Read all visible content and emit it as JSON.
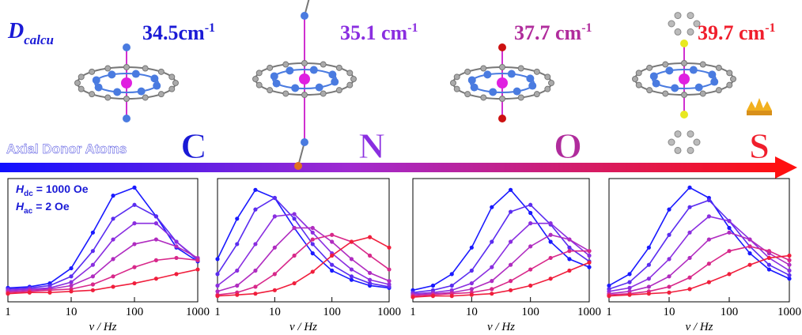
{
  "header": {
    "symbol": "D",
    "sub": "calcu"
  },
  "arrow_label": "Axial Donor Atoms",
  "molecules": [
    {
      "d_value": "34.5cm",
      "exponent": "-1",
      "atom": "C",
      "color": "#1a1ad6"
    },
    {
      "d_value": "35.1 cm",
      "exponent": "-1",
      "atom": "N",
      "color": "#8a2ee0"
    },
    {
      "d_value": "37.7 cm",
      "exponent": "-1",
      "atom": "O",
      "color": "#b02c9c"
    },
    {
      "d_value": "39.7 cm",
      "exponent": "-1",
      "atom": "S",
      "color": "#f01e2c"
    }
  ],
  "chart_data": [
    {
      "type": "line",
      "xlabel": "ν / Hz",
      "log_x": true,
      "xlim": [
        1,
        1000
      ],
      "xticks": [
        1,
        10,
        100,
        1000
      ],
      "ylim": [
        0,
        1
      ],
      "annotations": [
        {
          "symbol": "H",
          "sub": "dc",
          "text": "= 1000 Oe"
        },
        {
          "symbol": "H",
          "sub": "ac",
          "text": "= 2 Oe"
        }
      ],
      "x": [
        1,
        2.2,
        4.6,
        10,
        22,
        46,
        100,
        220,
        460,
        1000
      ],
      "series": [
        {
          "color": "#1a1aff",
          "values": [
            0.1,
            0.11,
            0.14,
            0.27,
            0.58,
            0.9,
            0.97,
            0.72,
            0.45,
            0.33
          ]
        },
        {
          "color": "#5a2df0",
          "values": [
            0.09,
            0.1,
            0.12,
            0.2,
            0.42,
            0.7,
            0.82,
            0.72,
            0.5,
            0.34
          ]
        },
        {
          "color": "#8a2ee0",
          "values": [
            0.08,
            0.09,
            0.1,
            0.15,
            0.3,
            0.52,
            0.66,
            0.66,
            0.5,
            0.35
          ]
        },
        {
          "color": "#b02cc0",
          "values": [
            0.07,
            0.08,
            0.09,
            0.12,
            0.2,
            0.35,
            0.48,
            0.52,
            0.46,
            0.36
          ]
        },
        {
          "color": "#d8288a",
          "values": [
            0.06,
            0.07,
            0.08,
            0.09,
            0.13,
            0.2,
            0.28,
            0.34,
            0.36,
            0.34
          ]
        },
        {
          "color": "#f01e3c",
          "values": [
            0.05,
            0.06,
            0.06,
            0.07,
            0.08,
            0.11,
            0.14,
            0.18,
            0.22,
            0.26
          ]
        }
      ]
    },
    {
      "type": "line",
      "xlabel": "ν / Hz",
      "log_x": true,
      "xlim": [
        1,
        1000
      ],
      "xticks": [
        1,
        10,
        100,
        1000
      ],
      "ylim": [
        0,
        1
      ],
      "x": [
        1,
        2.2,
        4.6,
        10,
        22,
        46,
        100,
        220,
        460,
        1000
      ],
      "series": [
        {
          "color": "#1a1aff",
          "values": [
            0.35,
            0.7,
            0.95,
            0.88,
            0.62,
            0.4,
            0.25,
            0.17,
            0.12,
            0.1
          ]
        },
        {
          "color": "#5a2df0",
          "values": [
            0.22,
            0.48,
            0.78,
            0.88,
            0.7,
            0.48,
            0.3,
            0.2,
            0.14,
            0.11
          ]
        },
        {
          "color": "#8a2ee0",
          "values": [
            0.12,
            0.25,
            0.48,
            0.72,
            0.74,
            0.58,
            0.4,
            0.26,
            0.17,
            0.13
          ]
        },
        {
          "color": "#b02cc0",
          "values": [
            0.07,
            0.12,
            0.25,
            0.45,
            0.62,
            0.62,
            0.5,
            0.35,
            0.23,
            0.16
          ]
        },
        {
          "color": "#d8288a",
          "values": [
            0.04,
            0.06,
            0.11,
            0.22,
            0.38,
            0.52,
            0.56,
            0.5,
            0.38,
            0.26
          ]
        },
        {
          "color": "#f01e3c",
          "values": [
            0.03,
            0.04,
            0.05,
            0.08,
            0.14,
            0.24,
            0.38,
            0.5,
            0.54,
            0.45
          ]
        }
      ]
    },
    {
      "type": "line",
      "xlabel": "ν / Hz",
      "log_x": true,
      "xlim": [
        1,
        1000
      ],
      "xticks": [
        1,
        10,
        100,
        1000
      ],
      "ylim": [
        0,
        1
      ],
      "x": [
        1,
        2.2,
        4.6,
        10,
        22,
        46,
        100,
        220,
        460,
        1000
      ],
      "series": [
        {
          "color": "#1a1aff",
          "values": [
            0.08,
            0.12,
            0.22,
            0.45,
            0.8,
            0.95,
            0.75,
            0.5,
            0.35,
            0.28
          ]
        },
        {
          "color": "#5a2df0",
          "values": [
            0.06,
            0.08,
            0.12,
            0.25,
            0.5,
            0.76,
            0.82,
            0.65,
            0.45,
            0.33
          ]
        },
        {
          "color": "#8a2ee0",
          "values": [
            0.05,
            0.06,
            0.08,
            0.14,
            0.28,
            0.5,
            0.66,
            0.66,
            0.52,
            0.38
          ]
        },
        {
          "color": "#b02cc0",
          "values": [
            0.04,
            0.05,
            0.06,
            0.09,
            0.16,
            0.3,
            0.46,
            0.56,
            0.52,
            0.42
          ]
        },
        {
          "color": "#d8288a",
          "values": [
            0.03,
            0.04,
            0.05,
            0.06,
            0.09,
            0.16,
            0.26,
            0.36,
            0.42,
            0.42
          ]
        },
        {
          "color": "#f01e3c",
          "values": [
            0.02,
            0.03,
            0.03,
            0.04,
            0.05,
            0.08,
            0.12,
            0.18,
            0.25,
            0.32
          ]
        }
      ]
    },
    {
      "type": "line",
      "xlabel": "ν / Hz",
      "log_x": true,
      "xlim": [
        1,
        1000
      ],
      "xticks": [
        1,
        10,
        100,
        1000
      ],
      "ylim": [
        0,
        1
      ],
      "x": [
        1,
        2.2,
        4.6,
        10,
        22,
        46,
        100,
        220,
        460,
        1000
      ],
      "series": [
        {
          "color": "#1a1aff",
          "values": [
            0.12,
            0.22,
            0.45,
            0.78,
            0.97,
            0.88,
            0.62,
            0.4,
            0.26,
            0.18
          ]
        },
        {
          "color": "#5a2df0",
          "values": [
            0.09,
            0.15,
            0.3,
            0.56,
            0.8,
            0.86,
            0.68,
            0.46,
            0.3,
            0.21
          ]
        },
        {
          "color": "#8a2ee0",
          "values": [
            0.07,
            0.1,
            0.18,
            0.35,
            0.58,
            0.72,
            0.68,
            0.52,
            0.36,
            0.25
          ]
        },
        {
          "color": "#b02cc0",
          "values": [
            0.05,
            0.07,
            0.11,
            0.2,
            0.36,
            0.52,
            0.58,
            0.52,
            0.4,
            0.3
          ]
        },
        {
          "color": "#d8288a",
          "values": [
            0.04,
            0.05,
            0.07,
            0.11,
            0.19,
            0.31,
            0.42,
            0.46,
            0.42,
            0.34
          ]
        },
        {
          "color": "#f01e3c",
          "values": [
            0.03,
            0.04,
            0.05,
            0.06,
            0.09,
            0.15,
            0.22,
            0.3,
            0.36,
            0.38
          ]
        }
      ]
    }
  ]
}
